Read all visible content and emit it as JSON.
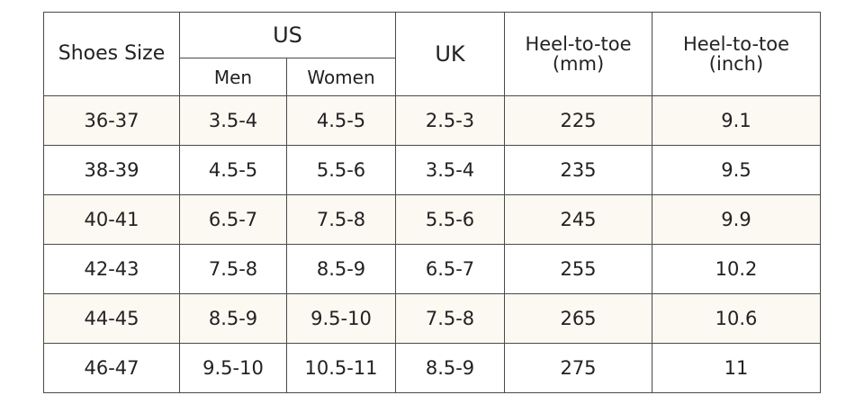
{
  "table": {
    "headers": {
      "shoes_size": "Shoes Size",
      "us": "US",
      "us_men": "Men",
      "us_women": "Women",
      "uk": "UK",
      "heel_mm_line1": "Heel-to-toe",
      "heel_mm_line2": "(mm)",
      "heel_inch_line1": "Heel-to-toe",
      "heel_inch_line2": "(inch)"
    },
    "rows": [
      {
        "eu": "36-37",
        "us_men": "3.5-4",
        "us_women": "4.5-5",
        "uk": "2.5-3",
        "mm": "225",
        "inch": "9.1"
      },
      {
        "eu": "38-39",
        "us_men": "4.5-5",
        "us_women": "5.5-6",
        "uk": "3.5-4",
        "mm": "235",
        "inch": "9.5"
      },
      {
        "eu": "40-41",
        "us_men": "6.5-7",
        "us_women": "7.5-8",
        "uk": "5.5-6",
        "mm": "245",
        "inch": "9.9"
      },
      {
        "eu": "42-43",
        "us_men": "7.5-8",
        "us_women": "8.5-9",
        "uk": "6.5-7",
        "mm": "255",
        "inch": "10.2"
      },
      {
        "eu": "44-45",
        "us_men": "8.5-9",
        "us_women": "9.5-10",
        "uk": "7.5-8",
        "mm": "265",
        "inch": "10.6"
      },
      {
        "eu": "46-47",
        "us_men": "9.5-10",
        "us_women": "10.5-11",
        "uk": "8.5-9",
        "mm": "275",
        "inch": "11"
      }
    ]
  },
  "colors": {
    "shaded_row": "#fcf8f2",
    "border": "#4a4a4a",
    "text": "#222222"
  }
}
